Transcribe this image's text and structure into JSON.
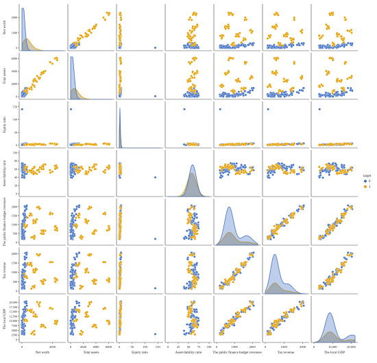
{
  "chart_data": {
    "type": "pairplot",
    "variables": [
      "Net worth",
      "Total assets",
      "Equity ratio",
      "Asset-liability ratio",
      "The public finance budget revenues",
      "Tax revenue",
      "The local GDP"
    ],
    "xlims": [
      [
        0,
        2700
      ],
      [
        0,
        6500
      ],
      [
        0,
        160
      ],
      [
        0,
        100
      ],
      [
        0,
        2300
      ],
      [
        0,
        2200
      ],
      [
        0,
        22000
      ]
    ],
    "ylims": [
      [
        0,
        2700
      ],
      [
        0,
        6500
      ],
      [
        0,
        160
      ],
      [
        0,
        100
      ],
      [
        0,
        2300
      ],
      [
        0,
        2200
      ],
      [
        0,
        22000
      ]
    ],
    "xticks": [
      [
        {
          "v": 0,
          "l": "0"
        },
        {
          "v": 2000,
          "l": "2000"
        }
      ],
      [
        {
          "v": 0,
          "l": "0"
        },
        {
          "v": 2000,
          "l": "2000"
        },
        {
          "v": 4000,
          "l": "4000"
        },
        {
          "v": 6000,
          "l": "6000"
        }
      ],
      [
        {
          "v": 0,
          "l": "0"
        },
        {
          "v": 50,
          "l": "50"
        },
        {
          "v": 100,
          "l": "100"
        },
        {
          "v": 150,
          "l": "150"
        }
      ],
      [
        {
          "v": 0,
          "l": "0"
        },
        {
          "v": 25,
          "l": "25"
        },
        {
          "v": 50,
          "l": "50"
        },
        {
          "v": 75,
          "l": "75"
        },
        {
          "v": 100,
          "l": "100"
        }
      ],
      [
        {
          "v": 0,
          "l": "0"
        },
        {
          "v": 1000,
          "l": "1000"
        },
        {
          "v": 2000,
          "l": "2000"
        }
      ],
      [
        {
          "v": 0,
          "l": "0"
        },
        {
          "v": 1000,
          "l": "1000"
        },
        {
          "v": 2000,
          "l": "2000"
        }
      ],
      [
        {
          "v": 0,
          "l": "0"
        },
        {
          "v": 10000,
          "l": "10,000"
        },
        {
          "v": 20000,
          "l": "20,000"
        }
      ]
    ],
    "yticks": [
      [
        {
          "v": 0,
          "l": "0"
        },
        {
          "v": 1000,
          "l": "1000"
        },
        {
          "v": 2000,
          "l": "2000"
        }
      ],
      [
        {
          "v": 0,
          "l": "0"
        },
        {
          "v": 2000,
          "l": "2000"
        },
        {
          "v": 4000,
          "l": "4000"
        },
        {
          "v": 6000,
          "l": "6000"
        }
      ],
      [
        {
          "v": 0,
          "l": "0"
        },
        {
          "v": 50,
          "l": "50"
        },
        {
          "v": 100,
          "l": "100"
        },
        {
          "v": 150,
          "l": "150"
        }
      ],
      [
        {
          "v": 0,
          "l": "0"
        },
        {
          "v": 20,
          "l": "20"
        },
        {
          "v": 40,
          "l": "40"
        },
        {
          "v": 60,
          "l": "60"
        },
        {
          "v": 80,
          "l": "80"
        },
        {
          "v": 100,
          "l": "100"
        }
      ],
      [
        {
          "v": 0,
          "l": "0"
        },
        {
          "v": 500,
          "l": "500"
        },
        {
          "v": 1000,
          "l": "1000"
        },
        {
          "v": 1500,
          "l": "1500"
        },
        {
          "v": 2000,
          "l": "2000"
        }
      ],
      [
        {
          "v": 0,
          "l": "0"
        },
        {
          "v": 500,
          "l": "500"
        },
        {
          "v": 1000,
          "l": "1000"
        },
        {
          "v": 1500,
          "l": "1500"
        },
        {
          "v": 2000,
          "l": "2000"
        }
      ],
      [
        {
          "v": 0,
          "l": "0"
        },
        {
          "v": 2500,
          "l": "2500"
        },
        {
          "v": 5000,
          "l": "5000"
        },
        {
          "v": 7500,
          "l": "7500"
        },
        {
          "v": 10000,
          "l": "10,000"
        },
        {
          "v": 12500,
          "l": "12,500"
        },
        {
          "v": 15000,
          "l": "15,000"
        },
        {
          "v": 17500,
          "l": "17,500"
        },
        {
          "v": 20000,
          "l": "20,000"
        }
      ]
    ],
    "legend": {
      "title": "target",
      "placement": "right",
      "labels": [
        "0",
        "1"
      ]
    },
    "colors": {
      "0": "#4472c4",
      "1": "#e69f00",
      "edge": "#ffffff"
    },
    "diag_kde": [
      {
        "peak": [
          45,
          270
        ],
        "width": [
          120,
          250
        ],
        "height": [
          0.95,
          0.25
        ]
      },
      {
        "peak": [
          150,
          500
        ],
        "width": [
          320,
          600
        ],
        "height": [
          0.95,
          0.22
        ]
      },
      {
        "peak": [
          2,
          2
        ],
        "width": [
          1.5,
          1.5
        ],
        "height": [
          0.9,
          0.55
        ]
      },
      {
        "peak": [
          60,
          58
        ],
        "width": [
          9,
          11
        ],
        "height": [
          0.75,
          0.55
        ]
      },
      {
        "peak": [
          700,
          700
        ],
        "width": [
          250,
          300
        ],
        "height": [
          0.9,
          0.3
        ]
      },
      {
        "peak": [
          500,
          500
        ],
        "width": [
          220,
          250
        ],
        "height": [
          0.92,
          0.25
        ]
      },
      {
        "peak": [
          8500,
          8500
        ],
        "width": [
          2500,
          3000
        ],
        "height": [
          0.7,
          0.25
        ]
      }
    ],
    "rows": [
      {
        "v": 0,
        "n": 60,
        "seed": 11
      },
      {
        "v": 1,
        "n": 40,
        "seed": 23
      }
    ],
    "series": [
      {
        "name": "0",
        "values": [
          [
            40,
            140,
            2,
            60,
            600,
            450,
            7500
          ],
          [
            65,
            220,
            2,
            55,
            300,
            200,
            4500
          ],
          [
            120,
            360,
            3,
            62,
            1200,
            1100,
            13000
          ],
          [
            30,
            110,
            1,
            70,
            900,
            700,
            9000
          ],
          [
            200,
            700,
            5,
            48,
            1800,
            1700,
            17500
          ],
          [
            80,
            280,
            2,
            58,
            400,
            380,
            6000
          ],
          [
            10,
            60,
            140,
            40,
            200,
            150,
            3000
          ],
          [
            150,
            520,
            4,
            65,
            1500,
            1400,
            15000
          ],
          [
            55,
            190,
            2,
            52,
            700,
            500,
            8000
          ],
          [
            90,
            330,
            3,
            68,
            1000,
            900,
            11000
          ],
          [
            25,
            95,
            1,
            45,
            250,
            180,
            3500
          ],
          [
            300,
            1000,
            6,
            60,
            2000,
            1950,
            19500
          ]
        ]
      },
      {
        "name": "1",
        "values": [
          [
            500,
            1200,
            3,
            57,
            1500,
            1400,
            15500
          ],
          [
            2300,
            6100,
            4,
            63,
            800,
            600,
            9500
          ],
          [
            900,
            2500,
            5,
            50,
            1200,
            1100,
            13500
          ],
          [
            1400,
            3700,
            3,
            66,
            600,
            500,
            7500
          ],
          [
            700,
            1900,
            2,
            61,
            300,
            250,
            4000
          ],
          [
            2000,
            5200,
            6,
            54,
            1600,
            1550,
            16500
          ],
          [
            1100,
            3000,
            4,
            59,
            2000,
            1900,
            19000
          ],
          [
            300,
            900,
            2,
            64,
            900,
            800,
            10500
          ]
        ]
      }
    ]
  }
}
